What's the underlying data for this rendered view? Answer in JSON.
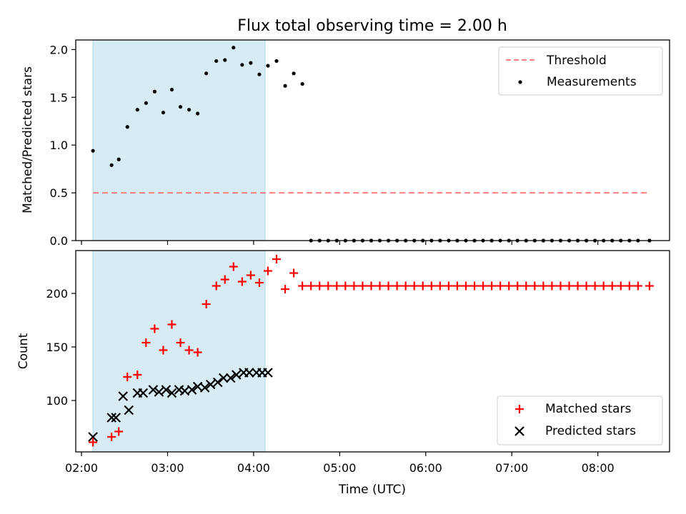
{
  "chart_data": [
    {
      "type": "scatter",
      "title": "Flux total observing time = 2.00 h",
      "xlabel": "",
      "ylabel": "Matched/Predicted stars",
      "ylim": [
        0,
        2.1
      ],
      "yticks": [
        "0.0",
        "0.5",
        "1.0",
        "1.5",
        "2.0"
      ],
      "xlim": [
        "01:56",
        "08:50"
      ],
      "shaded_interval": [
        "02:08",
        "04:08"
      ],
      "shade_color": "#add8e6",
      "legend_position": "top-right",
      "grid": false,
      "series": [
        {
          "name": "Threshold",
          "style": "dashed-line",
          "color": "#ff7f7f",
          "x": [
            "02:08",
            "08:36"
          ],
          "y": [
            0.5,
            0.5
          ]
        },
        {
          "name": "Measurements",
          "style": "dot",
          "color": "#000000",
          "x": [
            "02:08",
            "02:21",
            "02:26",
            "02:32",
            "02:39",
            "02:45",
            "02:51",
            "02:57",
            "03:03",
            "03:09",
            "03:15",
            "03:21",
            "03:27",
            "03:34",
            "03:40",
            "03:46",
            "03:52",
            "03:58",
            "04:04",
            "04:10",
            "04:16",
            "04:22",
            "04:28",
            "04:34",
            "04:40",
            "04:46",
            "04:52",
            "04:58",
            "05:04",
            "05:10",
            "05:16",
            "05:22",
            "05:28",
            "05:34",
            "05:40",
            "05:46",
            "05:52",
            "05:58",
            "06:04",
            "06:10",
            "06:16",
            "06:22",
            "06:28",
            "06:34",
            "06:40",
            "06:46",
            "06:52",
            "06:58",
            "07:04",
            "07:10",
            "07:16",
            "07:22",
            "07:28",
            "07:34",
            "07:40",
            "07:46",
            "07:52",
            "07:58",
            "08:04",
            "08:10",
            "08:16",
            "08:22",
            "08:28",
            "08:36"
          ],
          "y": [
            0.94,
            0.79,
            0.85,
            1.19,
            1.37,
            1.44,
            1.56,
            1.34,
            1.58,
            1.4,
            1.37,
            1.33,
            1.75,
            1.88,
            1.89,
            2.02,
            1.84,
            1.86,
            1.74,
            1.83,
            1.88,
            1.62,
            1.75,
            1.64,
            0,
            0,
            0,
            0,
            0,
            0,
            0,
            0,
            0,
            0,
            0,
            0,
            0,
            0,
            0,
            0,
            0,
            0,
            0,
            0,
            0,
            0,
            0,
            0,
            0,
            0,
            0,
            0,
            0,
            0,
            0,
            0,
            0,
            0,
            0,
            0,
            0,
            0,
            0,
            0
          ]
        }
      ]
    },
    {
      "type": "scatter",
      "title": "",
      "xlabel": "Time (UTC)",
      "ylabel": "Count",
      "ylim": [
        52,
        240
      ],
      "yticks": [
        "100",
        "150",
        "200"
      ],
      "xticks": [
        "02:00",
        "03:00",
        "04:00",
        "05:00",
        "06:00",
        "07:00",
        "08:00"
      ],
      "xlim": [
        "01:56",
        "08:50"
      ],
      "shaded_interval": [
        "02:08",
        "04:08"
      ],
      "shade_color": "#add8e6",
      "legend_position": "bottom-right",
      "grid": false,
      "series": [
        {
          "name": "Matched stars",
          "marker": "plus",
          "color": "#ff0000",
          "x": [
            "02:08",
            "02:21",
            "02:26",
            "02:32",
            "02:39",
            "02:45",
            "02:51",
            "02:57",
            "03:03",
            "03:09",
            "03:15",
            "03:21",
            "03:27",
            "03:34",
            "03:40",
            "03:46",
            "03:52",
            "03:58",
            "04:04",
            "04:10",
            "04:16",
            "04:22",
            "04:28",
            "04:34",
            "04:40",
            "04:46",
            "04:52",
            "04:58",
            "05:04",
            "05:10",
            "05:16",
            "05:22",
            "05:28",
            "05:34",
            "05:40",
            "05:46",
            "05:52",
            "05:58",
            "06:04",
            "06:10",
            "06:16",
            "06:22",
            "06:28",
            "06:34",
            "06:40",
            "06:46",
            "06:52",
            "06:58",
            "07:04",
            "07:10",
            "07:16",
            "07:22",
            "07:28",
            "07:34",
            "07:40",
            "07:46",
            "07:52",
            "07:58",
            "08:04",
            "08:10",
            "08:16",
            "08:22",
            "08:28",
            "08:36"
          ],
          "y": [
            61,
            66,
            71,
            122,
            124,
            154,
            167,
            147,
            171,
            154,
            147,
            145,
            190,
            207,
            213,
            225,
            211,
            217,
            210,
            221,
            232,
            204,
            219,
            207,
            207,
            207,
            207,
            207,
            207,
            207,
            207,
            207,
            207,
            207,
            207,
            207,
            207,
            207,
            207,
            207,
            207,
            207,
            207,
            207,
            207,
            207,
            207,
            207,
            207,
            207,
            207,
            207,
            207,
            207,
            207,
            207,
            207,
            207,
            207,
            207,
            207,
            207,
            207,
            207
          ]
        },
        {
          "name": "Predicted stars",
          "marker": "x",
          "color": "#000000",
          "x": [
            "02:08",
            "02:21",
            "02:24",
            "02:29",
            "02:33",
            "02:39",
            "02:43",
            "02:50",
            "02:54",
            "02:59",
            "03:03",
            "03:08",
            "03:12",
            "03:17",
            "03:21",
            "03:26",
            "03:30",
            "03:35",
            "03:39",
            "03:44",
            "03:48",
            "03:53",
            "03:57",
            "04:02",
            "04:06",
            "04:10"
          ],
          "y": [
            66,
            84,
            84,
            104,
            91,
            107,
            107,
            110,
            108,
            110,
            107,
            110,
            109,
            110,
            113,
            112,
            115,
            117,
            121,
            121,
            124,
            126,
            126,
            126,
            126,
            126
          ]
        }
      ]
    }
  ]
}
